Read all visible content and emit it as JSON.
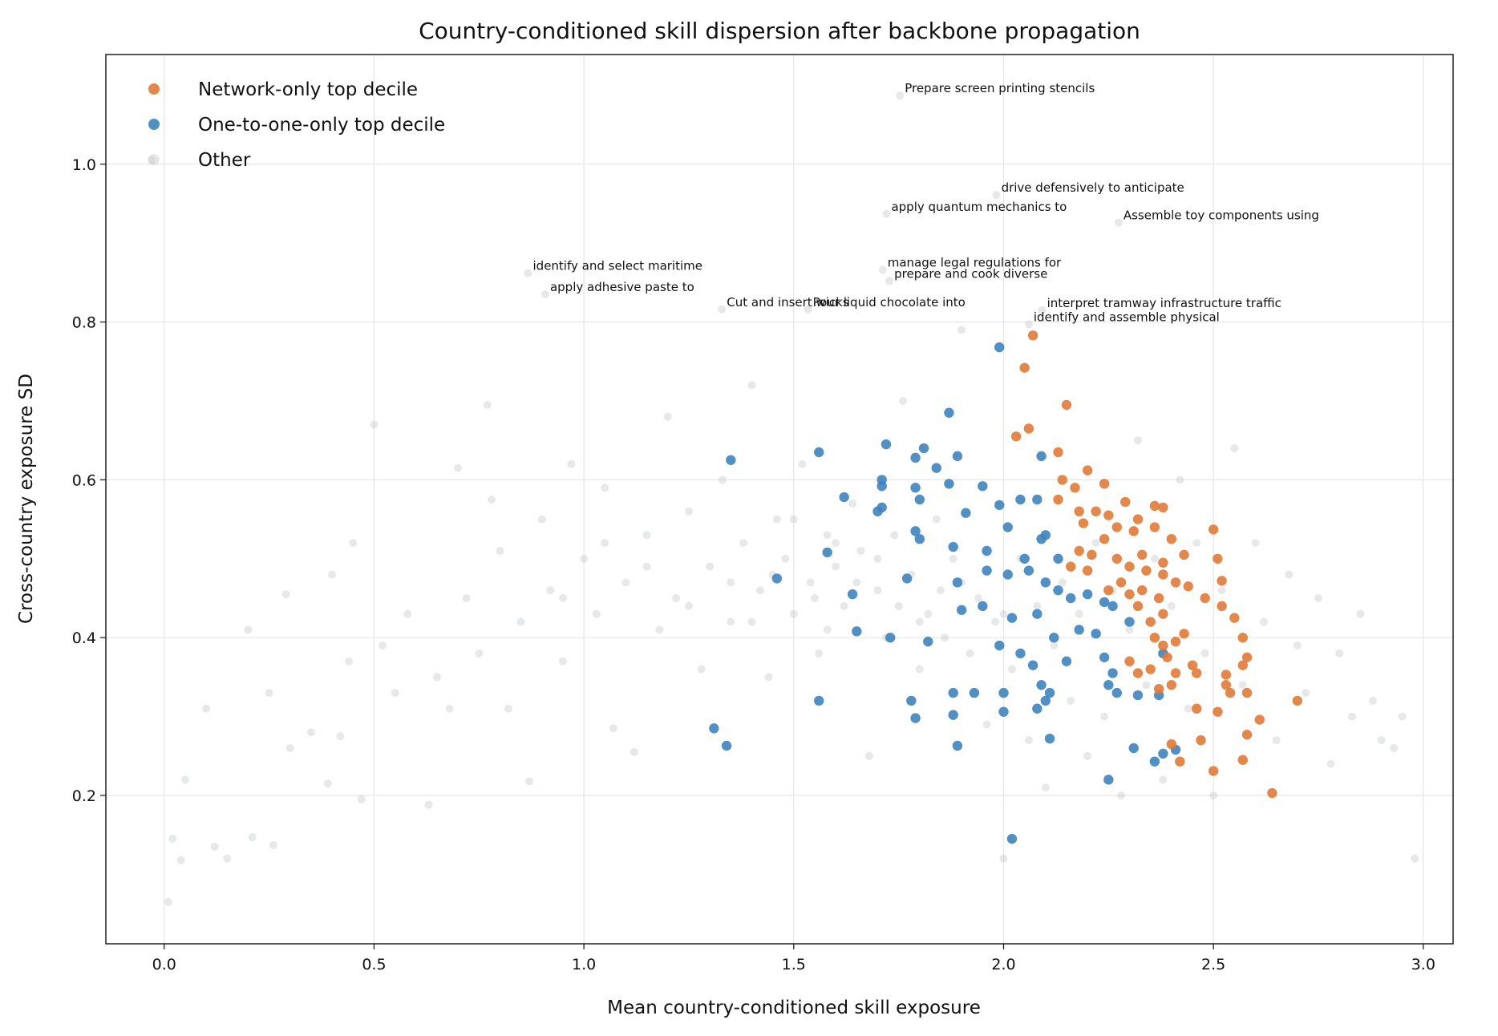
{
  "chart_data": {
    "type": "scatter",
    "title": "Country-conditioned skill dispersion after backbone propagation",
    "xlabel": "Mean country-conditioned skill exposure",
    "ylabel": "Cross-country exposure SD",
    "xlim": [
      -0.139,
      3.071
    ],
    "ylim": [
      0.012,
      1.139
    ],
    "xticks": [
      {
        "value": 0,
        "label": "0.0"
      },
      0.5,
      {
        "value": 1,
        "label": "1.0"
      },
      1.5,
      {
        "value": 2,
        "label": "2.0"
      },
      2.5,
      {
        "value": 3,
        "label": "3.0"
      }
    ],
    "yticks": [
      0.2,
      0.4,
      0.6,
      0.8,
      {
        "value": 1,
        "label": "1.0"
      }
    ],
    "grid": true,
    "legend": "upper left",
    "series": [
      {
        "name": "Network-only top decile",
        "color": "#e07b39",
        "opacity": 0.9,
        "x": [
          2.07,
          2.05,
          2.06,
          2.03,
          2.15,
          2.13,
          2.14,
          2.17,
          2.2,
          2.24,
          2.13,
          2.18,
          2.19,
          2.22,
          2.25,
          2.29,
          2.32,
          2.36,
          2.38,
          2.27,
          2.31,
          2.24,
          2.18,
          2.21,
          2.27,
          2.3,
          2.33,
          2.36,
          2.4,
          2.43,
          2.38,
          2.34,
          2.28,
          2.25,
          2.2,
          2.16,
          2.3,
          2.33,
          2.38,
          2.41,
          2.44,
          2.37,
          2.32,
          2.35,
          2.38,
          2.41,
          2.43,
          2.38,
          2.36,
          2.39,
          2.3,
          2.32,
          2.35,
          2.37,
          2.4,
          2.41,
          2.45,
          2.46,
          2.46,
          2.47,
          2.4,
          2.42,
          2.48,
          2.5,
          2.51,
          2.52,
          2.52,
          2.55,
          2.57,
          2.58,
          2.57,
          2.58,
          2.53,
          2.53,
          2.54,
          2.51,
          2.61,
          2.58,
          2.57,
          2.5,
          2.64,
          2.7
        ],
        "values": [
          0.783,
          0.742,
          0.665,
          0.655,
          0.695,
          0.635,
          0.6,
          0.59,
          0.612,
          0.595,
          0.575,
          0.56,
          0.545,
          0.56,
          0.555,
          0.572,
          0.55,
          0.567,
          0.565,
          0.54,
          0.535,
          0.525,
          0.51,
          0.505,
          0.5,
          0.49,
          0.505,
          0.54,
          0.525,
          0.505,
          0.495,
          0.485,
          0.47,
          0.46,
          0.485,
          0.49,
          0.455,
          0.46,
          0.48,
          0.47,
          0.465,
          0.45,
          0.44,
          0.42,
          0.43,
          0.395,
          0.405,
          0.39,
          0.4,
          0.375,
          0.37,
          0.355,
          0.36,
          0.335,
          0.34,
          0.355,
          0.365,
          0.355,
          0.31,
          0.27,
          0.265,
          0.243,
          0.45,
          0.537,
          0.5,
          0.472,
          0.44,
          0.425,
          0.4,
          0.375,
          0.365,
          0.33,
          0.353,
          0.34,
          0.33,
          0.306,
          0.296,
          0.277,
          0.245,
          0.231,
          0.203,
          0.32
        ]
      },
      {
        "name": "One-to-one-only top decile",
        "color": "#3f83bd",
        "opacity": 0.9,
        "x": [
          1.99,
          1.87,
          1.35,
          1.56,
          1.72,
          1.81,
          1.79,
          1.84,
          1.89,
          1.71,
          1.71,
          1.79,
          1.8,
          1.62,
          1.71,
          1.7,
          1.87,
          1.95,
          2.09,
          2.08,
          2.04,
          1.99,
          1.91,
          2.01,
          2.1,
          2.09,
          1.79,
          1.8,
          1.58,
          1.88,
          1.96,
          2.05,
          2.13,
          1.46,
          1.77,
          1.64,
          1.89,
          1.96,
          2.01,
          2.06,
          2.1,
          2.13,
          2.16,
          2.2,
          2.24,
          2.26,
          1.9,
          1.95,
          2.02,
          2.08,
          2.12,
          2.18,
          2.22,
          2.3,
          2.38,
          1.65,
          1.73,
          1.82,
          1.99,
          2.04,
          2.07,
          2.15,
          2.24,
          2.26,
          2.09,
          2.11,
          1.88,
          1.93,
          2.0,
          1.56,
          1.78,
          1.79,
          1.88,
          2.0,
          2.08,
          2.1,
          2.25,
          2.27,
          2.32,
          2.37,
          1.89,
          2.11,
          1.31,
          1.34,
          2.31,
          2.38,
          2.41,
          2.36,
          2.25,
          2.02
        ],
        "values": [
          0.768,
          0.685,
          0.625,
          0.635,
          0.645,
          0.64,
          0.628,
          0.615,
          0.63,
          0.6,
          0.592,
          0.59,
          0.575,
          0.578,
          0.565,
          0.56,
          0.595,
          0.592,
          0.63,
          0.575,
          0.575,
          0.568,
          0.558,
          0.54,
          0.53,
          0.525,
          0.535,
          0.525,
          0.508,
          0.515,
          0.51,
          0.5,
          0.5,
          0.475,
          0.475,
          0.455,
          0.47,
          0.485,
          0.48,
          0.485,
          0.47,
          0.46,
          0.45,
          0.455,
          0.445,
          0.44,
          0.435,
          0.44,
          0.425,
          0.43,
          0.4,
          0.41,
          0.405,
          0.42,
          0.38,
          0.408,
          0.4,
          0.395,
          0.39,
          0.38,
          0.365,
          0.37,
          0.375,
          0.355,
          0.34,
          0.33,
          0.33,
          0.33,
          0.33,
          0.32,
          0.32,
          0.298,
          0.302,
          0.306,
          0.31,
          0.32,
          0.34,
          0.33,
          0.327,
          0.327,
          0.263,
          0.272,
          0.285,
          0.263,
          0.26,
          0.253,
          0.258,
          0.243,
          0.22,
          0.145
        ]
      },
      {
        "name": "Other",
        "color": "#b9bcc4",
        "opacity": 0.35,
        "x": [
          -0.03,
          0.01,
          0.02,
          0.04,
          0.05,
          0.1,
          0.12,
          0.15,
          0.2,
          0.21,
          0.25,
          0.26,
          0.29,
          0.3,
          0.35,
          0.39,
          0.4,
          0.42,
          0.44,
          0.45,
          0.47,
          0.5,
          0.52,
          0.55,
          0.58,
          0.63,
          0.65,
          0.68,
          0.7,
          0.72,
          0.75,
          0.77,
          0.78,
          0.8,
          0.82,
          0.85,
          0.87,
          0.9,
          0.92,
          0.95,
          0.97,
          1.0,
          1.03,
          1.05,
          1.07,
          1.1,
          1.12,
          1.15,
          1.18,
          1.2,
          1.22,
          1.25,
          1.28,
          1.3,
          1.33,
          1.35,
          1.38,
          1.4,
          1.42,
          1.44,
          1.46,
          1.48,
          1.5,
          1.52,
          1.54,
          1.56,
          1.58,
          1.6,
          1.62,
          1.64,
          1.66,
          1.68,
          1.7,
          1.72,
          1.74,
          1.76,
          1.78,
          1.8,
          1.82,
          1.84,
          1.86,
          1.88,
          1.9,
          1.92,
          1.94,
          1.96,
          1.98,
          2.0,
          2.02,
          2.04,
          2.06,
          2.08,
          2.1,
          2.12,
          2.14,
          2.16,
          2.18,
          2.2,
          2.22,
          2.24,
          2.26,
          2.28,
          2.3,
          2.32,
          2.34,
          2.36,
          2.38,
          2.4,
          2.42,
          2.44,
          2.46,
          2.48,
          2.5,
          2.52,
          2.55,
          2.57,
          2.6,
          2.62,
          2.65,
          2.68,
          2.7,
          2.72,
          2.75,
          2.78,
          2.8,
          2.83,
          2.85,
          2.88,
          2.9,
          2.93,
          2.95,
          2.98,
          1.55,
          1.65,
          1.75,
          1.45,
          1.35,
          1.6,
          1.7,
          1.5,
          1.4,
          1.85,
          1.25,
          1.15,
          0.95,
          1.05,
          1.8,
          1.9,
          2.0,
          1.58
        ],
        "values": [
          1.005,
          0.065,
          0.145,
          0.118,
          0.22,
          0.31,
          0.135,
          0.12,
          0.41,
          0.147,
          0.33,
          0.137,
          0.455,
          0.26,
          0.28,
          0.215,
          0.48,
          0.275,
          0.37,
          0.52,
          0.195,
          0.67,
          0.39,
          0.33,
          0.43,
          0.188,
          0.35,
          0.31,
          0.615,
          0.45,
          0.38,
          0.695,
          0.575,
          0.51,
          0.31,
          0.42,
          0.218,
          0.55,
          0.46,
          0.37,
          0.62,
          0.5,
          0.43,
          0.59,
          0.285,
          0.47,
          0.255,
          0.53,
          0.41,
          0.68,
          0.45,
          0.56,
          0.36,
          0.49,
          0.6,
          0.42,
          0.52,
          0.72,
          0.46,
          0.35,
          0.55,
          0.5,
          0.43,
          0.62,
          0.47,
          0.38,
          0.53,
          0.49,
          0.44,
          0.57,
          0.51,
          0.25,
          0.46,
          0.4,
          0.53,
          0.7,
          0.48,
          0.36,
          0.43,
          0.55,
          0.4,
          0.5,
          0.79,
          0.38,
          0.45,
          0.29,
          0.42,
          0.12,
          0.36,
          0.5,
          0.27,
          0.44,
          0.21,
          0.39,
          0.47,
          0.32,
          0.43,
          0.25,
          0.52,
          0.3,
          0.46,
          0.2,
          0.41,
          0.65,
          0.34,
          0.5,
          0.22,
          0.44,
          0.6,
          0.31,
          0.52,
          0.38,
          0.2,
          0.46,
          0.64,
          0.34,
          0.52,
          0.42,
          0.27,
          0.48,
          0.39,
          0.33,
          0.45,
          0.24,
          0.38,
          0.3,
          0.43,
          0.32,
          0.27,
          0.26,
          0.3,
          0.12,
          0.45,
          0.47,
          0.44,
          0.48,
          0.47,
          0.52,
          0.5,
          0.55,
          0.42,
          0.46,
          0.44,
          0.49,
          0.45,
          0.52,
          0.42,
          0.47,
          0.43,
          0.41
        ]
      }
    ],
    "annotations": [
      {
        "text": "Prepare screen printing stencils",
        "x": 1.753,
        "y": 1.087
      },
      {
        "text": "drive defensively to anticipate",
        "x": 1.983,
        "y": 0.961
      },
      {
        "text": "apply quantum mechanics to",
        "x": 1.721,
        "y": 0.937
      },
      {
        "text": "Assemble toy components using",
        "x": 2.274,
        "y": 0.926
      },
      {
        "text": "identify and select maritime",
        "x": 0.867,
        "y": 0.862
      },
      {
        "text": "manage legal regulations for",
        "x": 1.712,
        "y": 0.866
      },
      {
        "text": "prepare and cook diverse",
        "x": 1.728,
        "y": 0.852
      },
      {
        "text": "apply adhesive paste to",
        "x": 0.908,
        "y": 0.835
      },
      {
        "text": "Cut and insert wicks",
        "x": 1.329,
        "y": 0.816
      },
      {
        "text": "Pour liquid chocolate into",
        "x": 1.534,
        "y": 0.816
      },
      {
        "text": "interpret tramway infrastructure traffic",
        "x": 2.092,
        "y": 0.815
      },
      {
        "text": "identify and assemble physical",
        "x": 2.06,
        "y": 0.797
      }
    ]
  }
}
